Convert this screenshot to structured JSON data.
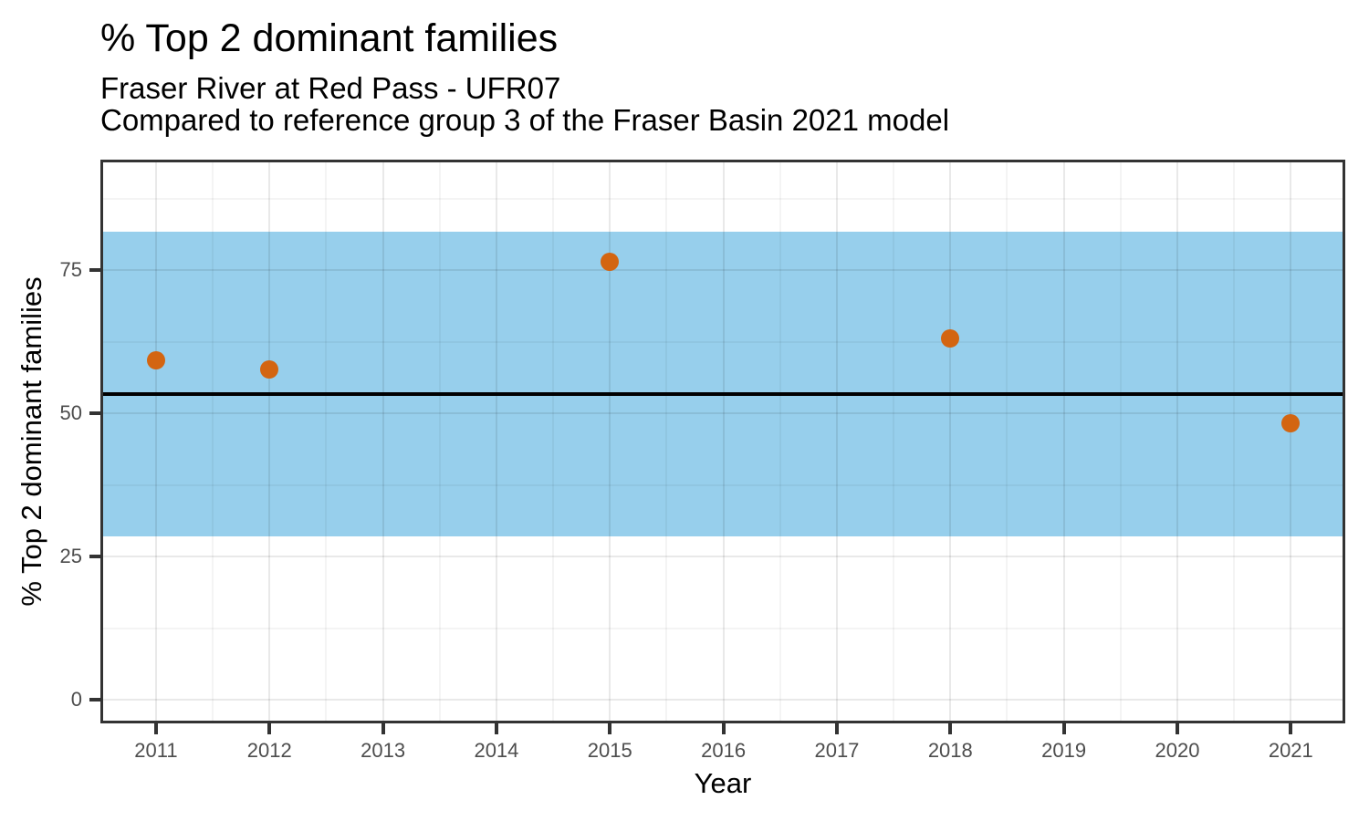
{
  "header": {
    "title": "% Top 2 dominant families",
    "subtitle_line1": "Fraser River at Red Pass - UFR07",
    "subtitle_line2": "Compared to reference group 3 of the Fraser Basin 2021 model"
  },
  "chart_data": {
    "type": "scatter",
    "title": "% Top 2 dominant families",
    "subtitle": [
      "Fraser River at Red Pass - UFR07",
      "Compared to reference group 3 of the Fraser Basin 2021 model"
    ],
    "xlabel": "Year",
    "ylabel": "% Top 2 dominant families",
    "x": [
      2011,
      2012,
      2015,
      2018,
      2021
    ],
    "y": [
      59.3,
      57.6,
      76.5,
      63.1,
      48.3
    ],
    "series_name": "% Top 2 dominant families at UFR07",
    "reference_band": {
      "low": 28.5,
      "high": 81.7,
      "meaning": "reference group 3 range, Fraser Basin 2021 model"
    },
    "reference_line": {
      "value": 53.4,
      "meaning": "reference group 3 central value"
    },
    "xlim": [
      2010.51,
      2021.48
    ],
    "ylim": [
      -4.14,
      94.27
    ],
    "xticks": [
      2011,
      2012,
      2013,
      2014,
      2015,
      2016,
      2017,
      2018,
      2019,
      2020,
      2021
    ],
    "yticks": [
      0,
      25,
      50,
      75
    ],
    "xticks_minor": [
      2011.5,
      2012.5,
      2013.5,
      2014.5,
      2015.5,
      2016.5,
      2017.5,
      2018.5,
      2019.5,
      2020.5
    ],
    "yticks_minor": [
      12.5,
      37.5,
      62.5,
      87.5
    ],
    "grid": "major+minor",
    "legend": "none",
    "colors": {
      "point": "#D36511",
      "band": "#97CFEC",
      "reference_line": "#000000",
      "panel_border": "#333333",
      "grid_major": "rgba(0,0,0,0.085)",
      "grid_minor": "rgba(0,0,0,0.045)",
      "tick_label": "#4D4D4D",
      "tick_mark": "#333333",
      "text": "#000000",
      "background": "#FFFFFF"
    }
  }
}
